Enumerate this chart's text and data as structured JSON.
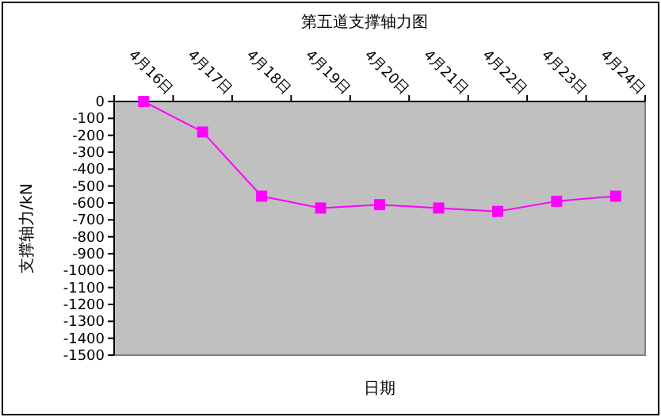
{
  "chart_data": {
    "type": "line",
    "title": "第五道支撑轴力图",
    "xlabel": "日期",
    "ylabel": "支撑轴力/kN",
    "categories": [
      "4月16日",
      "4月17日",
      "4月18日",
      "4月19日",
      "4月20日",
      "4月21日",
      "4月22日",
      "4月23日",
      "4月24日"
    ],
    "series": [
      {
        "color": "#ff00ff",
        "values": [
          0,
          -180,
          -560,
          -630,
          -610,
          -630,
          -650,
          -590,
          -560
        ]
      }
    ],
    "ylim": [
      -1500,
      0
    ],
    "yticks": [
      0,
      -100,
      -200,
      -300,
      -400,
      -500,
      -600,
      -700,
      -800,
      -900,
      -1000,
      -1100,
      -1200,
      -1300,
      -1400,
      -1500
    ],
    "marker": "square",
    "line_style": "solid",
    "grid": false
  }
}
